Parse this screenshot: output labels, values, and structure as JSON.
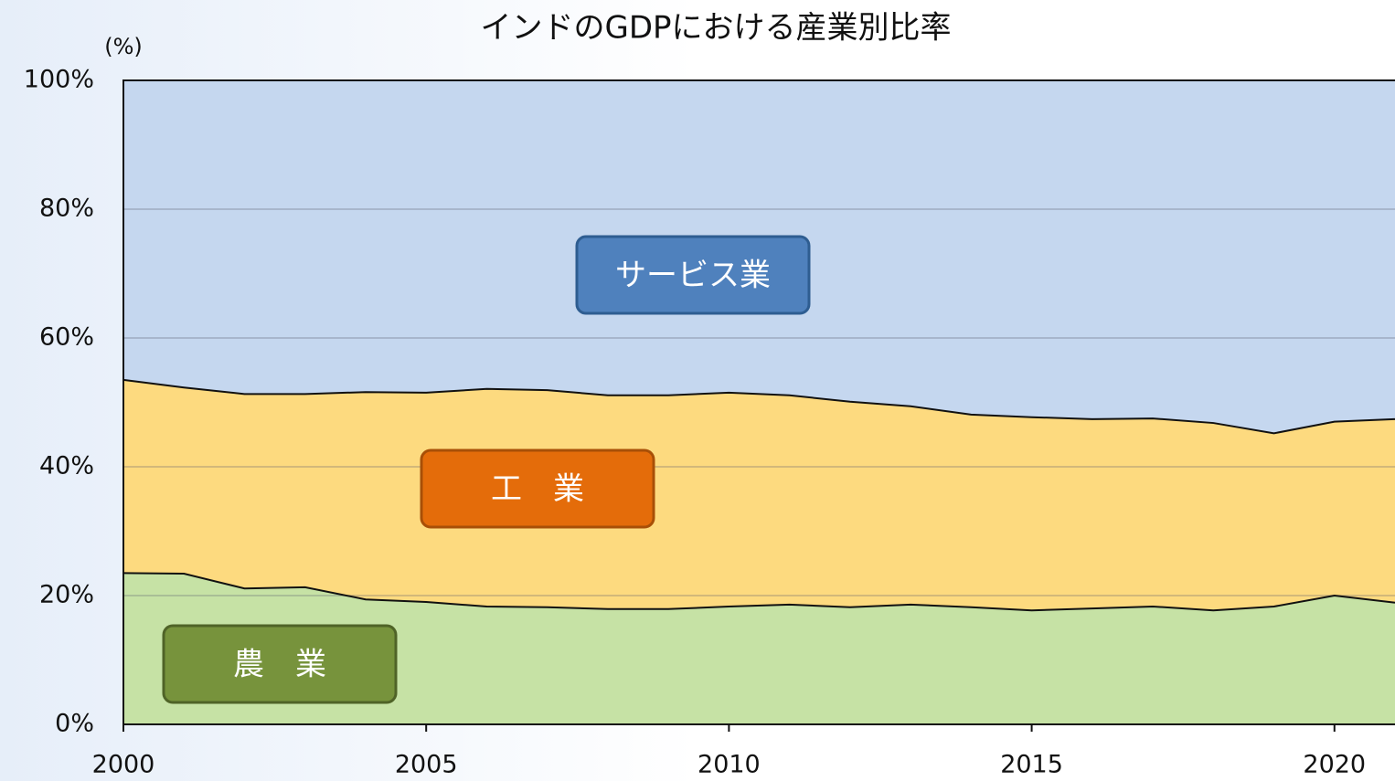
{
  "chart_data": {
    "type": "stacked_area",
    "title": "インドのGDPにおける産業別比率",
    "y_label": "(%)",
    "x": [
      2000,
      2001,
      2002,
      2003,
      2004,
      2005,
      2006,
      2007,
      2008,
      2009,
      2010,
      2011,
      2012,
      2013,
      2014,
      2015,
      2016,
      2017,
      2018,
      2019,
      2020,
      2021
    ],
    "series": [
      {
        "name": "農　業",
        "color": "#c6e2a5",
        "box_color": "#77933c",
        "box_border": "#4f6327",
        "values": [
          23.5,
          23.4,
          21.1,
          21.3,
          19.4,
          19.0,
          18.3,
          18.2,
          17.9,
          17.9,
          18.3,
          18.6,
          18.2,
          18.6,
          18.2,
          17.7,
          18.0,
          18.3,
          17.7,
          18.3,
          20.0,
          18.9
        ]
      },
      {
        "name": "工　業",
        "color": "#fdda7f",
        "box_color": "#e46c0a",
        "box_border": "#a84f07",
        "values": [
          30.0,
          28.9,
          30.2,
          30.0,
          32.2,
          32.5,
          33.8,
          33.7,
          33.2,
          33.2,
          33.2,
          32.5,
          31.9,
          30.8,
          29.9,
          30.0,
          29.4,
          29.2,
          29.1,
          26.9,
          27.0,
          28.5
        ]
      },
      {
        "name": "サービス業",
        "color": "#c5d7ef",
        "box_color": "#4f81bd",
        "box_border": "#2e5d91",
        "values": [
          46.5,
          47.7,
          48.7,
          48.7,
          48.4,
          48.5,
          47.9,
          48.1,
          48.9,
          48.9,
          48.5,
          48.9,
          49.9,
          50.6,
          51.9,
          52.3,
          52.6,
          52.5,
          53.2,
          54.8,
          53.0,
          52.6
        ]
      }
    ],
    "xlim": [
      2000,
      2021
    ],
    "xticks": [
      2000,
      2005,
      2010,
      2015,
      2020
    ],
    "ylim": [
      0,
      100
    ],
    "yticks": [
      {
        "value": 0,
        "label": "0%"
      },
      {
        "value": 20,
        "label": "20%"
      },
      {
        "value": 40,
        "label": "40%"
      },
      {
        "value": 60,
        "label": "60%"
      },
      {
        "value": 80,
        "label": "80%"
      },
      {
        "value": 100,
        "label": "100%"
      }
    ],
    "grid": true
  }
}
